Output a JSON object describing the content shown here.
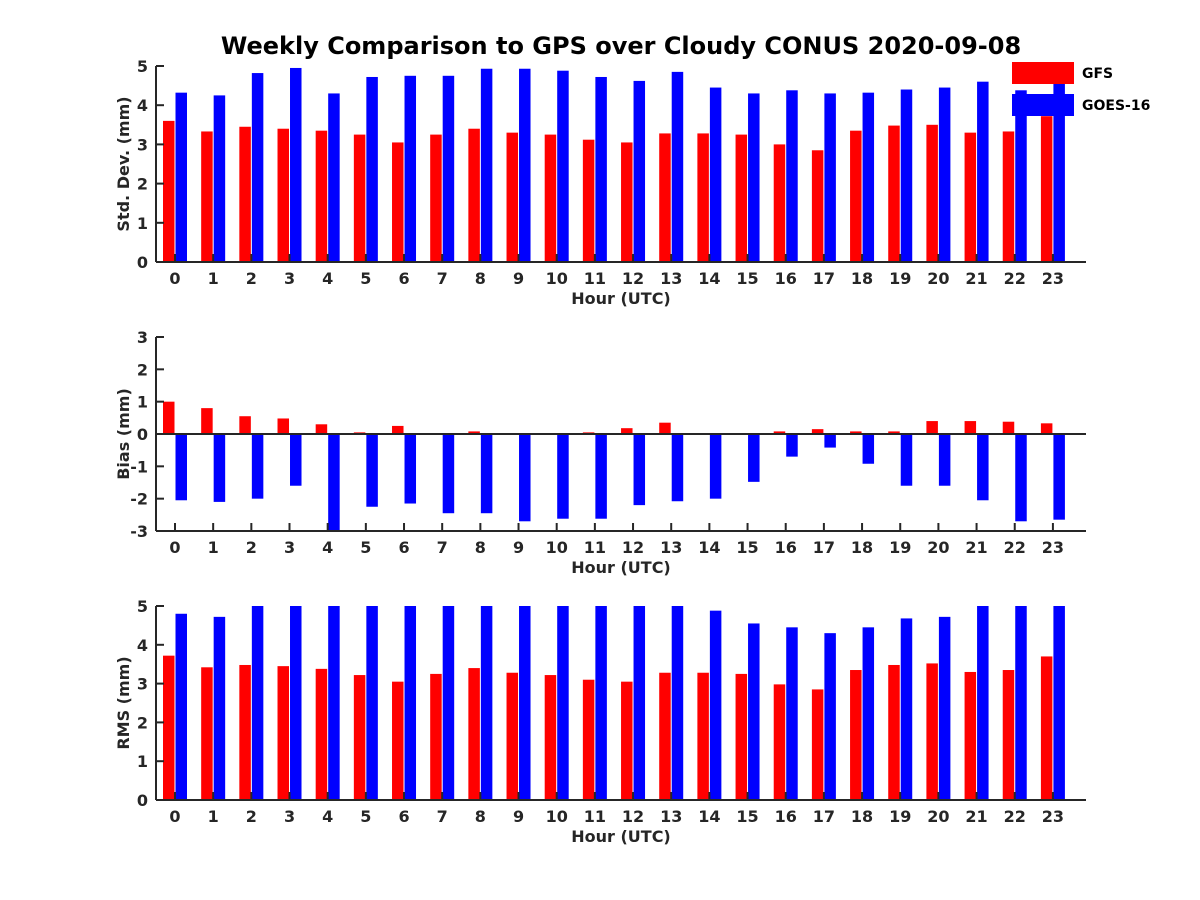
{
  "title": "Weekly Comparison to GPS over Cloudy CONUS 2020-09-08",
  "colors": {
    "gfs": "#ff0000",
    "goes": "#0000ff"
  },
  "legend": [
    {
      "name": "GFS",
      "color": "#ff0000"
    },
    {
      "name": "GOES-16",
      "color": "#0000ff"
    }
  ],
  "chart_data": [
    {
      "type": "bar",
      "xlabel": "Hour (UTC)",
      "ylabel": "Std. Dev. (mm)",
      "ylim": [
        0,
        5
      ],
      "yticks": [
        0,
        1,
        2,
        3,
        4,
        5
      ],
      "categories": [
        "0",
        "1",
        "2",
        "3",
        "4",
        "5",
        "6",
        "7",
        "8",
        "9",
        "10",
        "11",
        "12",
        "13",
        "14",
        "15",
        "16",
        "17",
        "18",
        "19",
        "20",
        "21",
        "22",
        "23"
      ],
      "series": [
        {
          "name": "GFS",
          "values": [
            3.6,
            3.33,
            3.45,
            3.4,
            3.35,
            3.25,
            3.05,
            3.25,
            3.4,
            3.3,
            3.25,
            3.12,
            3.05,
            3.28,
            3.28,
            3.25,
            3.0,
            2.85,
            3.35,
            3.48,
            3.5,
            3.3,
            3.33,
            3.72
          ]
        },
        {
          "name": "GOES-16",
          "values": [
            4.32,
            4.25,
            4.82,
            4.95,
            4.3,
            4.72,
            4.75,
            4.75,
            4.93,
            4.93,
            4.88,
            4.72,
            4.62,
            4.85,
            4.45,
            4.3,
            4.38,
            4.3,
            4.32,
            4.4,
            4.45,
            4.6,
            4.38,
            4.62
          ]
        }
      ]
    },
    {
      "type": "bar",
      "xlabel": "Hour (UTC)",
      "ylabel": "Bias (mm)",
      "ylim": [
        -3,
        3
      ],
      "yticks": [
        -3,
        -2,
        -1,
        0,
        1,
        2,
        3
      ],
      "categories": [
        "0",
        "1",
        "2",
        "3",
        "4",
        "5",
        "6",
        "7",
        "8",
        "9",
        "10",
        "11",
        "12",
        "13",
        "14",
        "15",
        "16",
        "17",
        "18",
        "19",
        "20",
        "21",
        "22",
        "23"
      ],
      "series": [
        {
          "name": "GFS",
          "values": [
            1.0,
            0.8,
            0.55,
            0.48,
            0.3,
            0.05,
            0.25,
            0.02,
            0.08,
            -0.02,
            0.0,
            0.05,
            0.18,
            0.35,
            0.0,
            0.0,
            0.08,
            0.15,
            0.08,
            0.08,
            0.4,
            0.4,
            0.38,
            0.33
          ]
        },
        {
          "name": "GOES-16",
          "values": [
            -2.05,
            -2.1,
            -2.0,
            -1.6,
            -3.0,
            -2.25,
            -2.15,
            -2.45,
            -2.45,
            -2.7,
            -2.62,
            -2.62,
            -2.2,
            -2.08,
            -2.0,
            -1.48,
            -0.7,
            -0.42,
            -0.92,
            -1.6,
            -1.6,
            -2.05,
            -2.7,
            -2.65
          ]
        }
      ]
    },
    {
      "type": "bar",
      "xlabel": "Hour (UTC)",
      "ylabel": "RMS (mm)",
      "ylim": [
        0,
        5
      ],
      "yticks": [
        0,
        1,
        2,
        3,
        4,
        5
      ],
      "categories": [
        "0",
        "1",
        "2",
        "3",
        "4",
        "5",
        "6",
        "7",
        "8",
        "9",
        "10",
        "11",
        "12",
        "13",
        "14",
        "15",
        "16",
        "17",
        "18",
        "19",
        "20",
        "21",
        "22",
        "23"
      ],
      "series": [
        {
          "name": "GFS",
          "values": [
            3.72,
            3.42,
            3.48,
            3.45,
            3.38,
            3.22,
            3.05,
            3.25,
            3.4,
            3.28,
            3.22,
            3.1,
            3.05,
            3.28,
            3.28,
            3.25,
            2.98,
            2.85,
            3.35,
            3.48,
            3.52,
            3.3,
            3.35,
            3.7
          ]
        },
        {
          "name": "GOES-16",
          "values": [
            4.8,
            4.72,
            5.0,
            5.0,
            5.0,
            5.0,
            5.0,
            5.0,
            5.0,
            5.0,
            5.0,
            5.0,
            5.0,
            5.0,
            4.88,
            4.55,
            4.45,
            4.3,
            4.45,
            4.68,
            4.72,
            5.0,
            5.0,
            5.0
          ]
        }
      ]
    }
  ]
}
